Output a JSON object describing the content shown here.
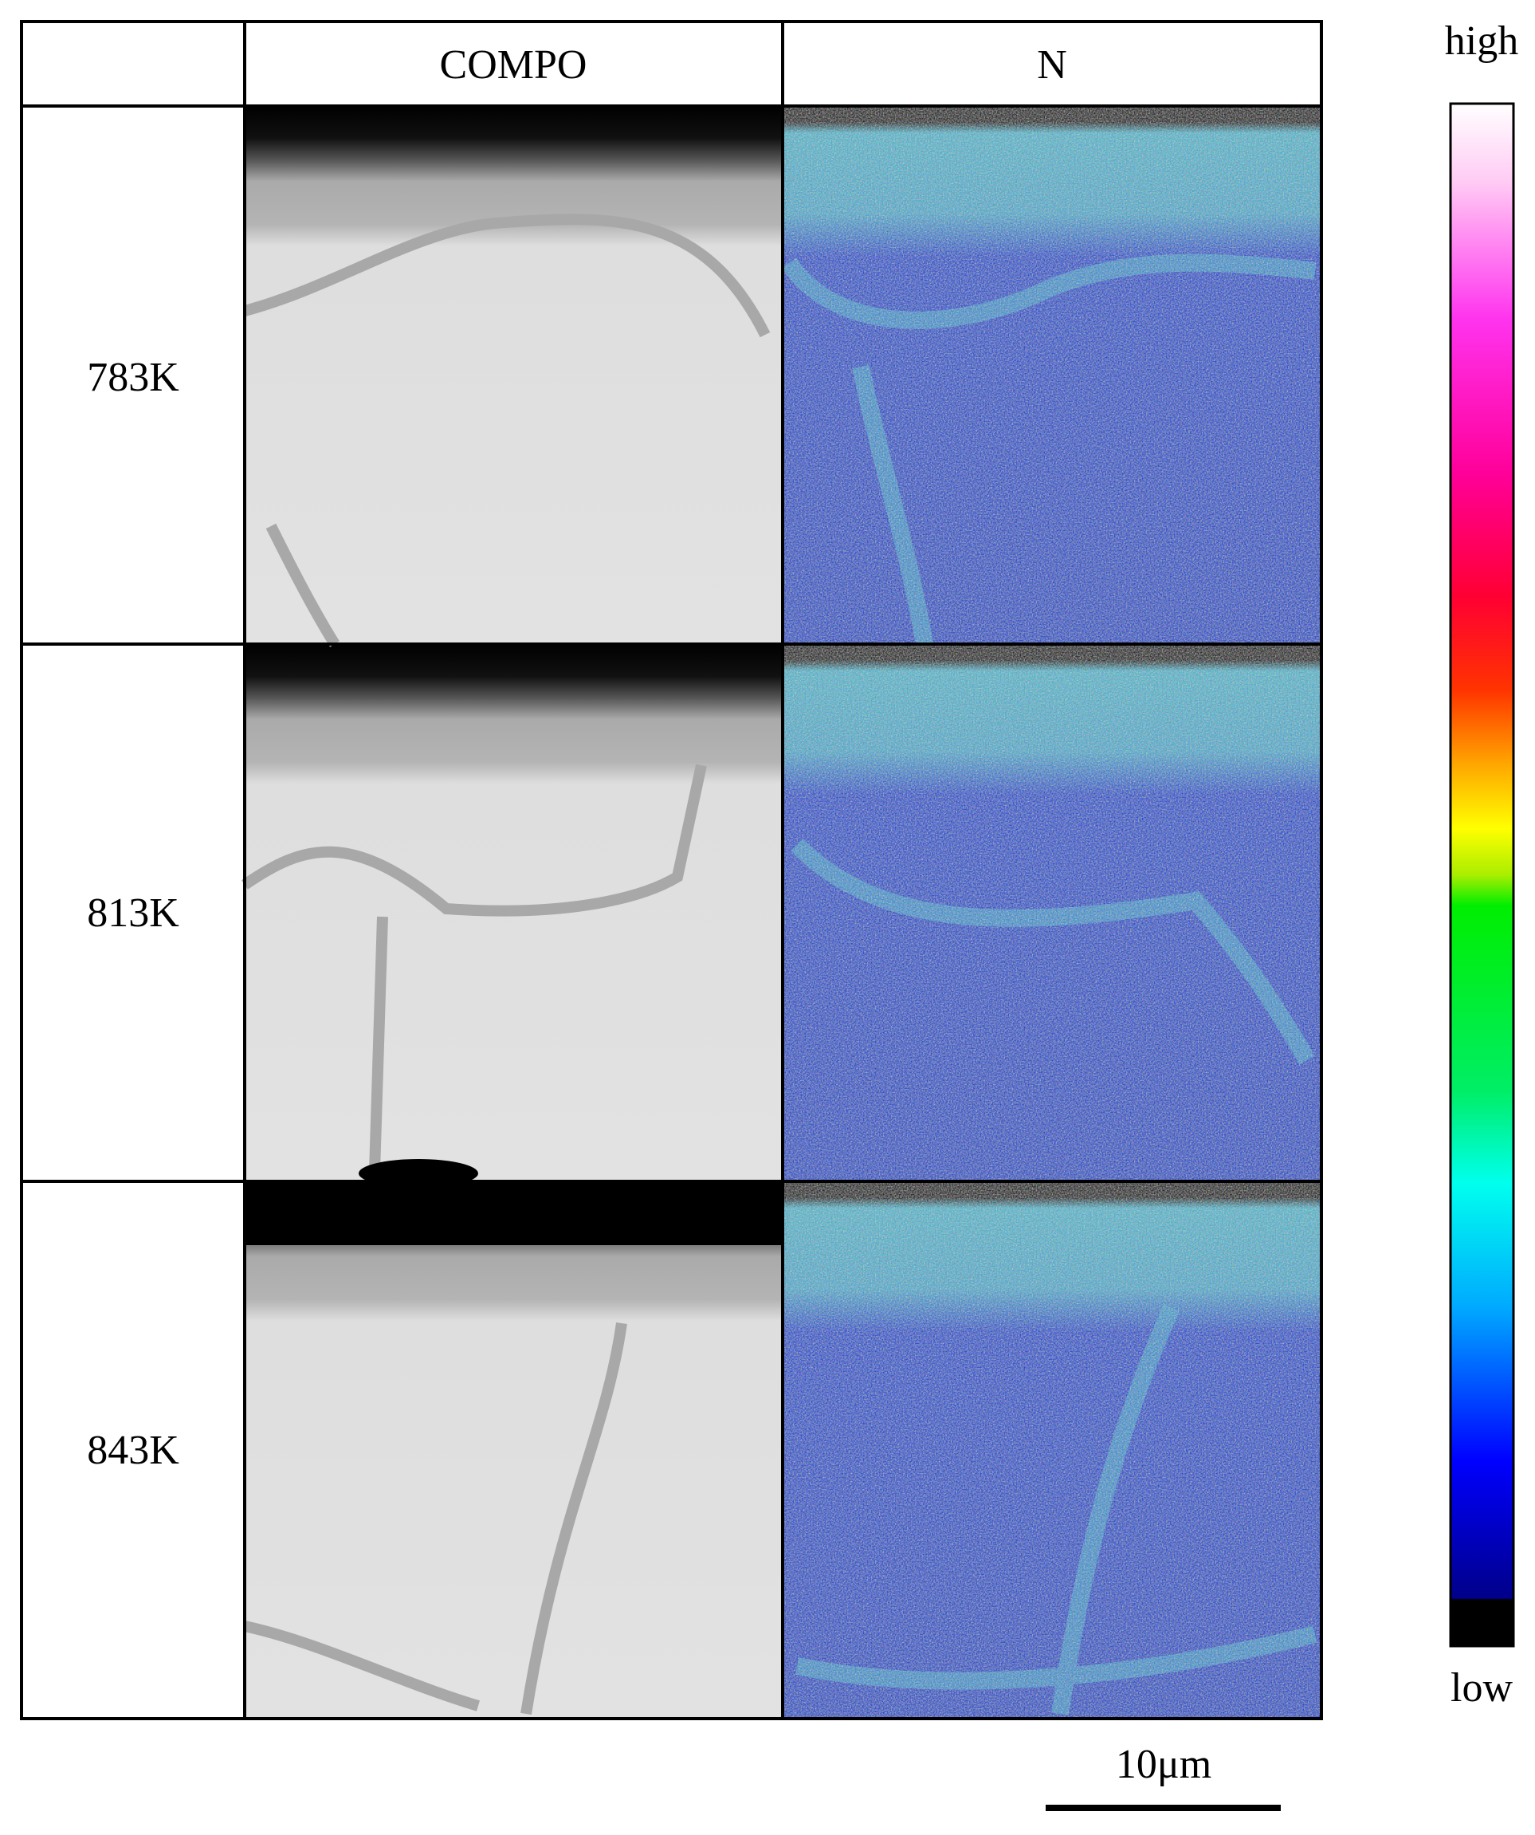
{
  "table": {
    "headers": [
      "COMPO",
      "N"
    ],
    "rows": [
      "783K",
      "813K",
      "843K"
    ]
  },
  "colorbar": {
    "high": "high",
    "low": "low"
  },
  "scale_bar": "10μm"
}
